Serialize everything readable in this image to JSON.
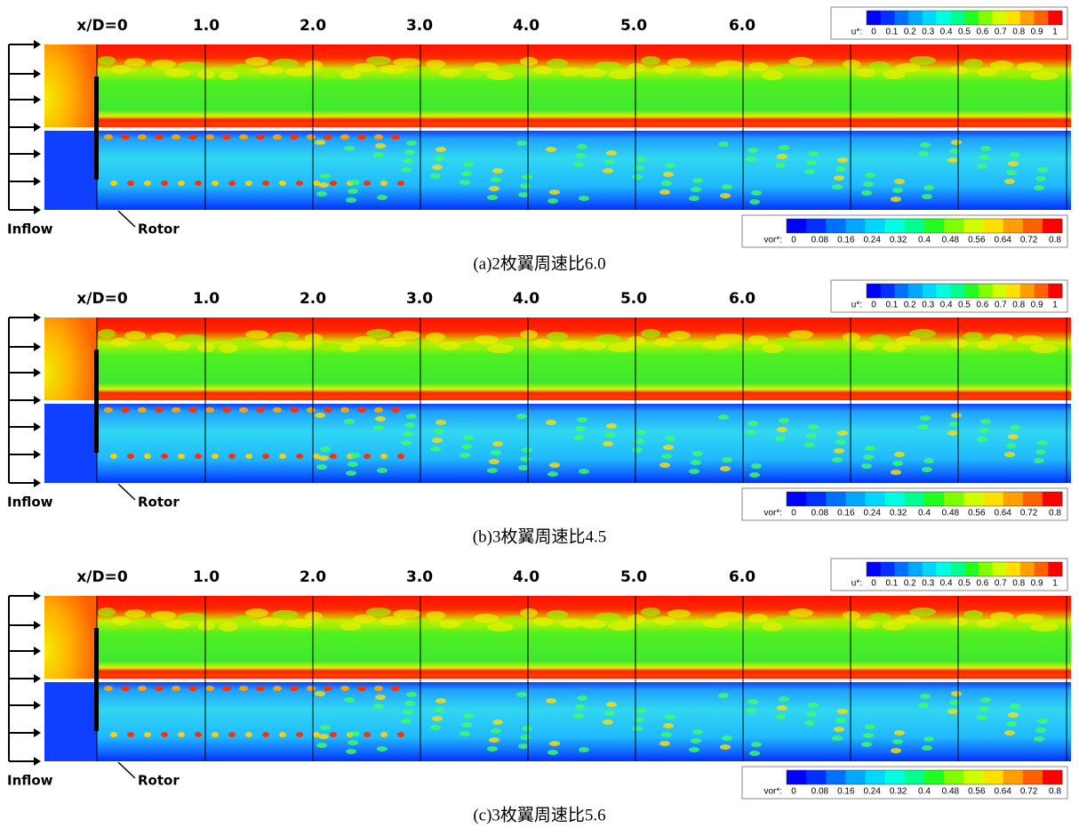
{
  "panels": [
    {
      "x_labels": [
        "x/D=0",
        "1.0",
        "2.0",
        "3.0",
        "4.0",
        "5.0",
        "6.0"
      ],
      "u_legend": {
        "label": "u*:",
        "ticks": [
          "0",
          "0.1",
          "0.2",
          "0.3",
          "0.4",
          "0.5",
          "0.6",
          "0.7",
          "0.8",
          "0.9",
          "1"
        ]
      },
      "vor_legend": {
        "label": "vor*:",
        "ticks": [
          "0",
          "0.08",
          "0.16",
          "0.24",
          "0.32",
          "0.4",
          "0.48",
          "0.56",
          "0.64",
          "0.72",
          "0.8"
        ]
      },
      "inflow": "Inflow",
      "rotor": "Rotor",
      "caption": "(a)2枚翼周速比6.0"
    },
    {
      "x_labels": [
        "x/D=0",
        "1.0",
        "2.0",
        "3.0",
        "4.0",
        "5.0",
        "6.0"
      ],
      "u_legend": {
        "label": "u*:",
        "ticks": [
          "0",
          "0.1",
          "0.2",
          "0.3",
          "0.4",
          "0.5",
          "0.6",
          "0.7",
          "0.8",
          "0.9",
          "1"
        ]
      },
      "vor_legend": {
        "label": "vor*:",
        "ticks": [
          "0",
          "0.08",
          "0.16",
          "0.24",
          "0.32",
          "0.4",
          "0.48",
          "0.56",
          "0.64",
          "0.72",
          "0.8"
        ]
      },
      "inflow": "Inflow",
      "rotor": "Rotor",
      "caption": "(b)3枚翼周速比4.5"
    },
    {
      "x_labels": [
        "x/D=0",
        "1.0",
        "2.0",
        "3.0",
        "4.0",
        "5.0",
        "6.0"
      ],
      "u_legend": {
        "label": "u*:",
        "ticks": [
          "0",
          "0.1",
          "0.2",
          "0.3",
          "0.4",
          "0.5",
          "0.6",
          "0.7",
          "0.8",
          "0.9",
          "1"
        ]
      },
      "vor_legend": {
        "label": "vor*:",
        "ticks": [
          "0",
          "0.08",
          "0.16",
          "0.24",
          "0.32",
          "0.4",
          "0.48",
          "0.56",
          "0.64",
          "0.72",
          "0.8"
        ]
      },
      "inflow": "Inflow",
      "rotor": "Rotor",
      "caption": "(c)3枚翼周速比5.6"
    }
  ]
}
